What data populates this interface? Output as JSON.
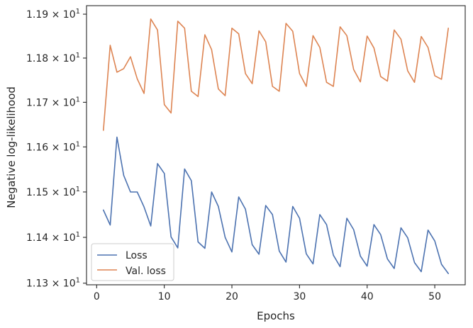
{
  "chart_data": {
    "type": "line",
    "xlabel": "Epochs",
    "ylabel": "Negative log-likelihood",
    "xlim": [
      -1.5,
      54.5
    ],
    "ylim": [
      11.2965,
      11.9195
    ],
    "y_scale": "log",
    "grid": false,
    "legend_position": "lower-left",
    "x_ticks": [
      0,
      10,
      20,
      30,
      40,
      50
    ],
    "y_ticks": [
      {
        "value": 11.3,
        "base": "1.13",
        "mult": "× 10",
        "exp": "1"
      },
      {
        "value": 11.4,
        "base": "1.14",
        "mult": "× 10",
        "exp": "1"
      },
      {
        "value": 11.5,
        "base": "1.15",
        "mult": "× 10",
        "exp": "1"
      },
      {
        "value": 11.6,
        "base": "1.16",
        "mult": "× 10",
        "exp": "1"
      },
      {
        "value": 11.7,
        "base": "1.17",
        "mult": "× 10",
        "exp": "1"
      },
      {
        "value": 11.8,
        "base": "1.18",
        "mult": "× 10",
        "exp": "1"
      },
      {
        "value": 11.9,
        "base": "1.19",
        "mult": "× 10",
        "exp": "1"
      }
    ],
    "x": [
      1,
      2,
      3,
      4,
      5,
      6,
      7,
      8,
      9,
      10,
      11,
      12,
      13,
      14,
      15,
      16,
      17,
      18,
      19,
      20,
      21,
      22,
      23,
      24,
      25,
      26,
      27,
      28,
      29,
      30,
      31,
      32,
      33,
      34,
      35,
      36,
      37,
      38,
      39,
      40,
      41,
      42,
      43,
      44,
      45,
      46,
      47,
      48,
      49,
      50,
      51,
      52
    ],
    "series": [
      {
        "name": "Loss",
        "color": "#4c72b0",
        "values": [
          11.46,
          11.427,
          11.622,
          11.537,
          11.5,
          11.5,
          11.467,
          11.425,
          11.563,
          11.541,
          11.401,
          11.377,
          11.551,
          11.525,
          11.39,
          11.376,
          11.5,
          11.468,
          11.4,
          11.368,
          11.489,
          11.462,
          11.384,
          11.363,
          11.47,
          11.45,
          11.37,
          11.346,
          11.468,
          11.442,
          11.364,
          11.342,
          11.45,
          11.428,
          11.361,
          11.336,
          11.442,
          11.417,
          11.359,
          11.337,
          11.428,
          11.406,
          11.353,
          11.332,
          11.421,
          11.399,
          11.345,
          11.325,
          11.416,
          11.392,
          11.341,
          11.321
        ]
      },
      {
        "name": "Val. loss",
        "color": "#dd8452",
        "values": [
          11.637,
          11.829,
          11.768,
          11.776,
          11.803,
          11.753,
          11.72,
          11.889,
          11.864,
          11.695,
          11.676,
          11.884,
          11.868,
          11.725,
          11.713,
          11.853,
          11.819,
          11.73,
          11.715,
          11.868,
          11.855,
          11.765,
          11.742,
          11.862,
          11.837,
          11.736,
          11.725,
          11.879,
          11.861,
          11.765,
          11.736,
          11.851,
          11.824,
          11.745,
          11.736,
          11.871,
          11.851,
          11.774,
          11.746,
          11.85,
          11.823,
          11.758,
          11.748,
          11.864,
          11.843,
          11.771,
          11.745,
          11.849,
          11.824,
          11.76,
          11.752,
          11.868
        ]
      }
    ]
  }
}
